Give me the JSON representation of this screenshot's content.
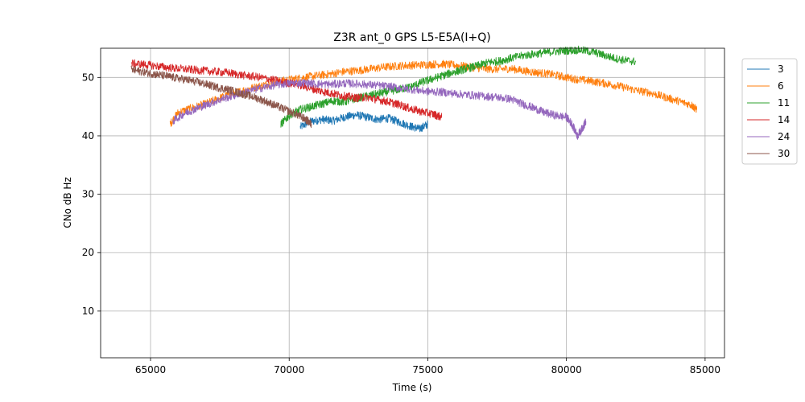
{
  "chart_data": {
    "type": "line",
    "title": "Z3R ant_0 GPS L5-E5A(I+Q)",
    "xlabel": "Time (s)",
    "ylabel": "CNo dB Hz",
    "xlim": [
      63200,
      85700
    ],
    "ylim": [
      2,
      55
    ],
    "xticks": [
      65000,
      70000,
      75000,
      80000,
      85000
    ],
    "yticks": [
      10,
      20,
      30,
      40,
      50
    ],
    "grid": true,
    "legend_position": "outside-top-right",
    "series": [
      {
        "name": "3",
        "color": "#1f77b4",
        "x": [
          70400,
          70800,
          71200,
          71600,
          72000,
          72400,
          72800,
          73200,
          73600,
          74000,
          74400,
          74700,
          75000
        ],
        "y": [
          41.5,
          42.5,
          42.8,
          42.6,
          43.2,
          43.6,
          43.2,
          42.8,
          43.0,
          42.3,
          41.6,
          41.2,
          42.0
        ]
      },
      {
        "name": "6",
        "color": "#ff7f0e",
        "x": [
          65700,
          66000,
          66500,
          67000,
          67500,
          68000,
          68500,
          69000,
          69500,
          70000,
          70500,
          71000,
          71500,
          72000,
          72500,
          73000,
          73500,
          74000,
          74500,
          75000,
          75500,
          76000,
          76500,
          77000,
          77500,
          78000,
          78500,
          79000,
          79500,
          80000,
          80500,
          81000,
          81500,
          82000,
          82500,
          83000,
          83500,
          84000,
          84500,
          84700
        ],
        "y": [
          42.0,
          44.0,
          44.8,
          45.5,
          46.5,
          47.3,
          48.0,
          48.6,
          49.2,
          49.6,
          50.0,
          50.3,
          50.6,
          51.0,
          51.2,
          51.5,
          51.8,
          52.0,
          52.1,
          52.2,
          52.3,
          52.1,
          51.8,
          51.5,
          51.4,
          51.5,
          51.1,
          50.8,
          50.5,
          50.0,
          49.6,
          49.3,
          48.9,
          48.4,
          47.8,
          47.4,
          46.7,
          46.0,
          45.3,
          44.5
        ]
      },
      {
        "name": "11",
        "color": "#2ca02c",
        "x": [
          69700,
          70000,
          70400,
          70800,
          71200,
          71600,
          72000,
          72400,
          72800,
          73200,
          73600,
          74000,
          74400,
          74800,
          75200,
          75600,
          76000,
          76400,
          76800,
          77200,
          77600,
          78000,
          78500,
          79000,
          79500,
          80000,
          80500,
          81000,
          81500,
          82000,
          82500
        ],
        "y": [
          42.0,
          43.5,
          44.5,
          45.0,
          45.5,
          46.0,
          45.8,
          46.4,
          46.8,
          47.2,
          47.6,
          48.0,
          48.4,
          49.2,
          49.8,
          50.4,
          51.0,
          51.5,
          52.0,
          52.6,
          52.8,
          53.3,
          53.8,
          54.1,
          54.4,
          54.6,
          54.7,
          54.3,
          53.6,
          53.0,
          52.7
        ]
      },
      {
        "name": "14",
        "color": "#d62728",
        "x": [
          64300,
          64800,
          65300,
          65800,
          66300,
          66800,
          67300,
          67800,
          68300,
          68800,
          69300,
          69800,
          70300,
          70800,
          71200,
          71600,
          72000,
          72400,
          72800,
          73200,
          73600,
          74000,
          74400,
          74800,
          75200,
          75500
        ],
        "y": [
          52.4,
          52.2,
          51.9,
          51.6,
          51.4,
          51.2,
          51.0,
          50.8,
          50.4,
          50.1,
          49.7,
          49.2,
          48.8,
          48.1,
          47.6,
          47.2,
          46.8,
          46.5,
          46.6,
          46.2,
          45.8,
          45.3,
          44.6,
          44.1,
          43.7,
          43.2
        ]
      },
      {
        "name": "24",
        "color": "#9467bd",
        "x": [
          65800,
          66200,
          66600,
          67000,
          67500,
          68000,
          68500,
          69000,
          69500,
          70000,
          70500,
          71000,
          71500,
          72000,
          72500,
          73000,
          73500,
          74000,
          74500,
          75000,
          75500,
          76000,
          76500,
          77000,
          77500,
          78000,
          78400,
          78800,
          79200,
          79600,
          80000,
          80200,
          80400,
          80600,
          80700
        ],
        "y": [
          42.5,
          43.8,
          44.6,
          45.3,
          46.2,
          46.9,
          47.6,
          48.2,
          48.7,
          49.0,
          49.1,
          48.9,
          48.8,
          49.0,
          48.9,
          48.7,
          48.5,
          48.2,
          47.9,
          47.6,
          47.5,
          47.2,
          47.0,
          46.8,
          46.6,
          46.3,
          45.5,
          44.8,
          44.0,
          43.5,
          43.2,
          42.0,
          40.0,
          41.5,
          42.5
        ]
      },
      {
        "name": "30",
        "color": "#8c564b",
        "x": [
          64300,
          64700,
          65100,
          65500,
          65900,
          66300,
          66700,
          67100,
          67500,
          67900,
          68300,
          68700,
          69100,
          69500,
          69900,
          70300,
          70600,
          70800
        ],
        "y": [
          51.3,
          51.0,
          50.6,
          50.3,
          49.9,
          49.6,
          49.2,
          48.7,
          48.2,
          47.8,
          47.2,
          46.7,
          46.0,
          45.2,
          44.4,
          43.6,
          42.8,
          42.0
        ]
      }
    ]
  }
}
